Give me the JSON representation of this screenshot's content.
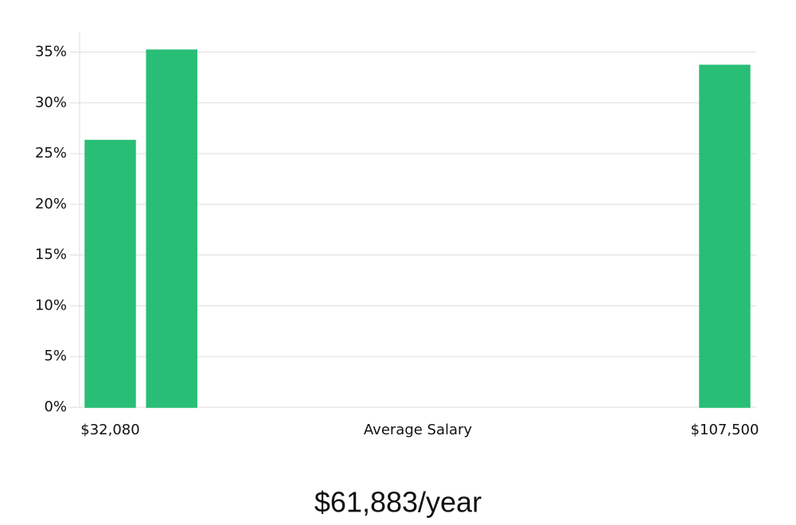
{
  "chart_data": {
    "type": "bar",
    "categories": [
      "$32,080",
      null,
      null,
      null,
      null,
      null,
      null,
      null,
      null,
      null,
      "$107,500"
    ],
    "values": [
      26.3,
      35.2,
      0,
      0,
      0,
      0,
      0,
      0,
      0,
      0,
      33.7
    ],
    "colors": [
      "#29be76",
      "#29be76",
      "#29be76",
      "#29be76",
      "#222222",
      "#29be76",
      "#29be76",
      "#29be76",
      "#29be76",
      "#29be76",
      "#29be76"
    ],
    "xlabel": "Average Salary",
    "ylim": [
      0,
      37
    ],
    "yticks": [
      {
        "value": 0,
        "label": "0%"
      },
      {
        "value": 5,
        "label": "5%"
      },
      {
        "value": 10,
        "label": "10%"
      },
      {
        "value": 15,
        "label": "15%"
      },
      {
        "value": 20,
        "label": "20%"
      },
      {
        "value": 25,
        "label": "25%"
      },
      {
        "value": 30,
        "label": "30%"
      },
      {
        "value": 35,
        "label": "35%"
      }
    ],
    "grid": true,
    "footer": "$61,883/year"
  }
}
